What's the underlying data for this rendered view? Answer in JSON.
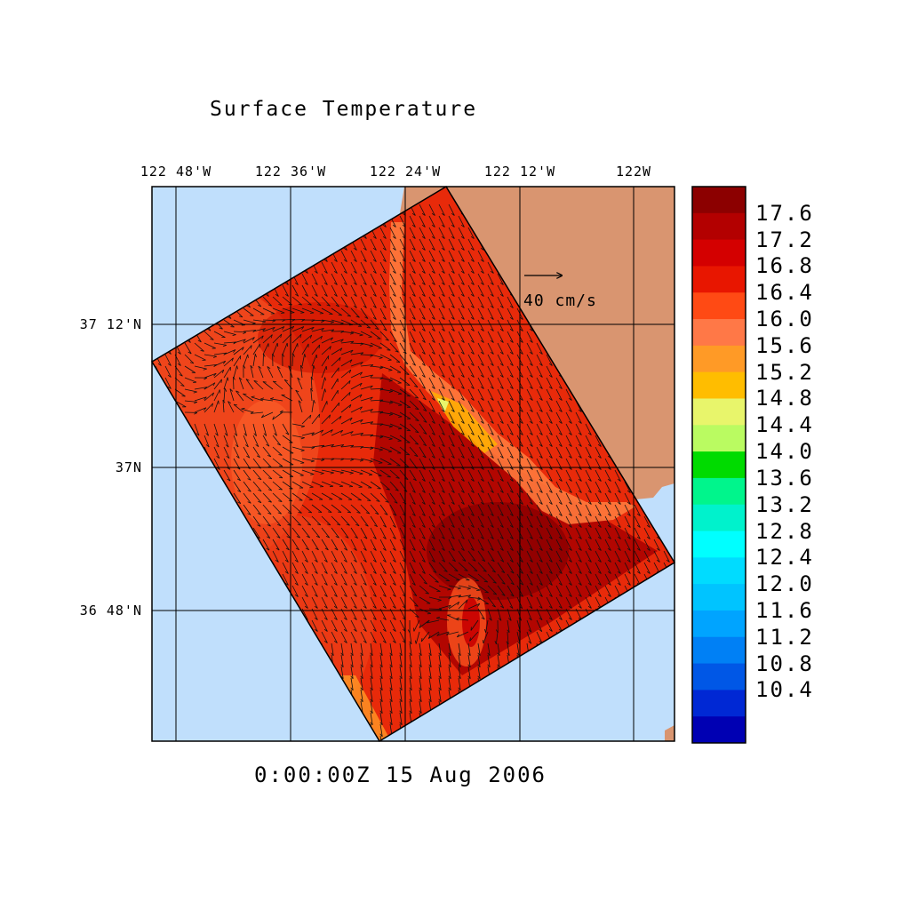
{
  "title": "Surface Temperature",
  "timestamp": "0:00:00Z  15 Aug 2006",
  "reference_vector": {
    "label": "40 cm/s"
  },
  "map": {
    "lon_labels": [
      {
        "label": "122 48'W",
        "lon": -122.8
      },
      {
        "label": "122 36'W",
        "lon": -122.6
      },
      {
        "label": "122 24'W",
        "lon": -122.4
      },
      {
        "label": "122 12'W",
        "lon": -122.2
      },
      {
        "label": "122W",
        "lon": -122.0
      }
    ],
    "lat_labels": [
      {
        "label": "37 12'N",
        "lat": 37.2
      },
      {
        "label": "37N",
        "lat": 37.0
      },
      {
        "label": "36 48'N",
        "lat": 36.8
      }
    ],
    "colors": {
      "ocean": "#c0dffc",
      "land": "#d99570"
    }
  },
  "colorbar": {
    "labels": [
      "17.6",
      "17.2",
      "16.8",
      "16.4",
      "16.0",
      "15.6",
      "15.2",
      "14.8",
      "14.4",
      "14.0",
      "13.6",
      "13.2",
      "12.8",
      "12.4",
      "12.0",
      "11.6",
      "11.2",
      "10.8",
      "10.4"
    ],
    "colors": [
      "#8c0000",
      "#b30000",
      "#d40000",
      "#e81600",
      "#ff4a14",
      "#ff7847",
      "#ff9a26",
      "#ffbd00",
      "#e8f56b",
      "#bafb61",
      "#00db00",
      "#00f58c",
      "#00f2cc",
      "#00ffff",
      "#00dcff",
      "#00c4ff",
      "#00a4ff",
      "#0080f5",
      "#0057e6",
      "#0028d4",
      "#0000b3"
    ]
  }
}
